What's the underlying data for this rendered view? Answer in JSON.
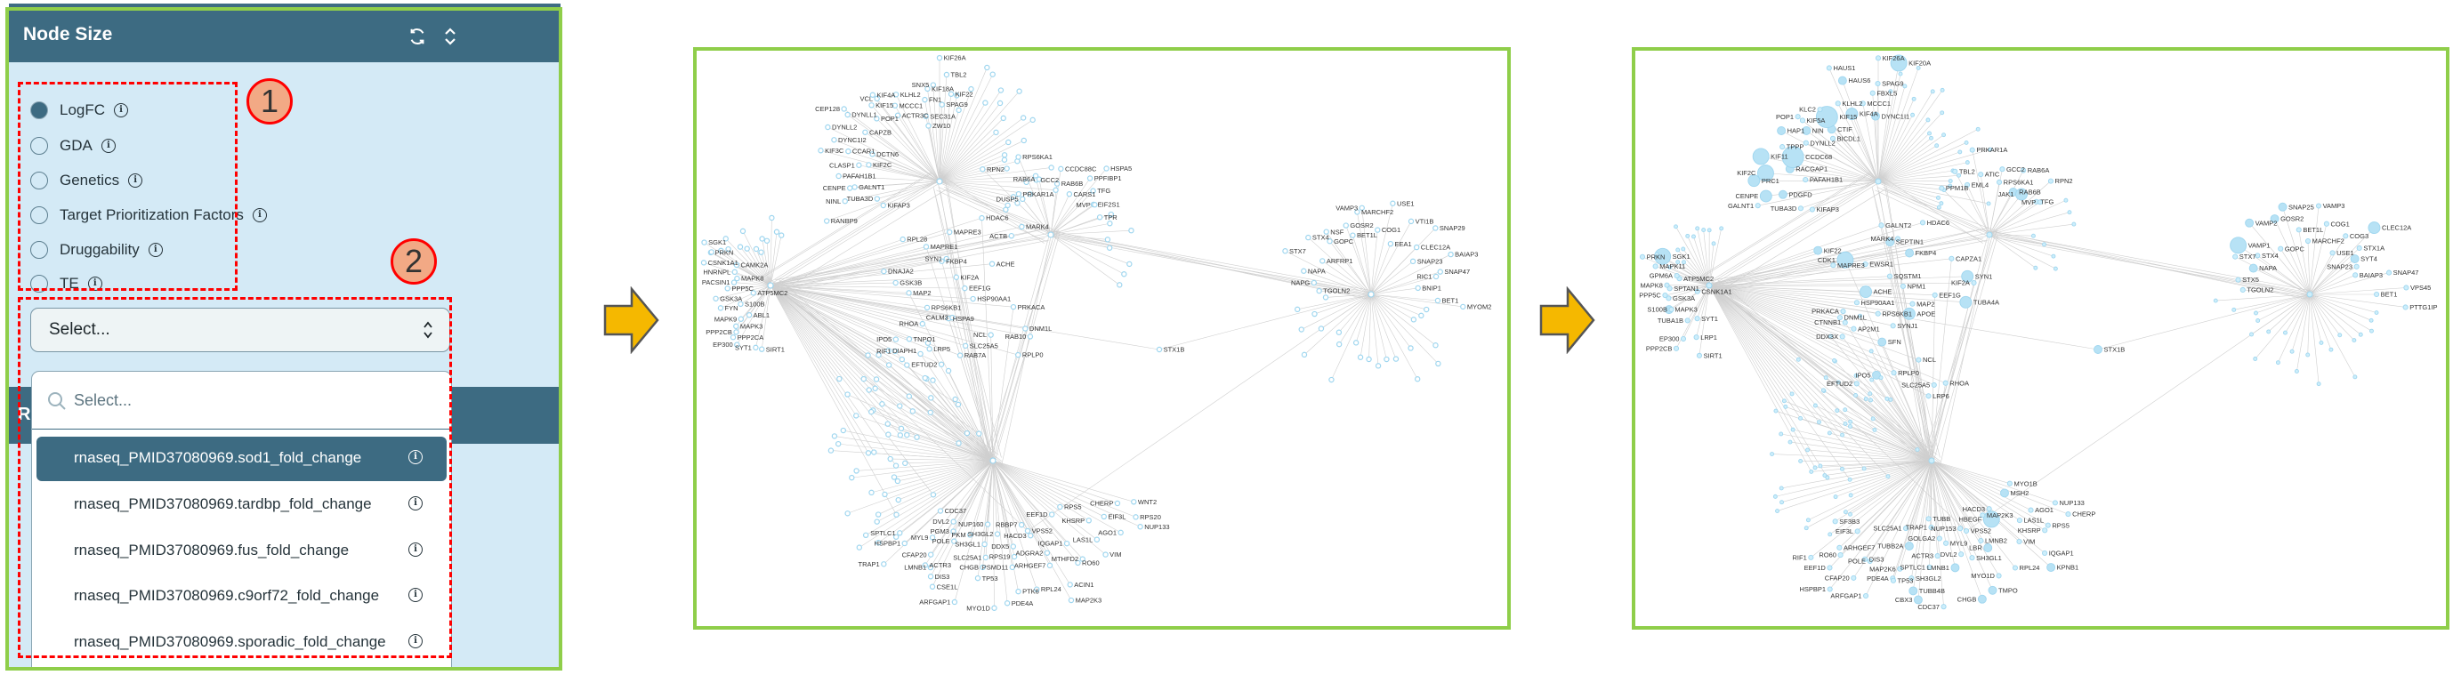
{
  "panel": {
    "title": "Node Size",
    "header_icons": [
      "refresh-icon",
      "chevron-up-down-icon"
    ],
    "radio_options": [
      {
        "label": "LogFC",
        "selected": true
      },
      {
        "label": "GDA",
        "selected": false
      },
      {
        "label": "Genetics",
        "selected": false
      },
      {
        "label": "Target Prioritization Factors",
        "selected": false
      },
      {
        "label": "Druggability",
        "selected": false
      },
      {
        "label": "TE",
        "selected": false
      }
    ],
    "select": {
      "value": "Select..."
    },
    "hidden_header_letter": "R",
    "dropdown": {
      "search_placeholder": "Select...",
      "options": [
        {
          "label": "rnaseq_PMID37080969.sod1_fold_change",
          "selected": true
        },
        {
          "label": "rnaseq_PMID37080969.tardbp_fold_change",
          "selected": false
        },
        {
          "label": "rnaseq_PMID37080969.fus_fold_change",
          "selected": false
        },
        {
          "label": "rnaseq_PMID37080969.c9orf72_fold_change",
          "selected": false
        },
        {
          "label": "rnaseq_PMID37080969.sporadic_fold_change",
          "selected": false
        }
      ]
    }
  },
  "annotations": {
    "callout_1": "1",
    "callout_2": "2"
  },
  "colors": {
    "header": "#3d6b82",
    "panel_bg": "#d4eaf6",
    "frame": "#8fce4a",
    "annotation": "#ff0000",
    "arrow": "#f5b800",
    "node": "#a9dcf2",
    "edge": "#cccccc"
  },
  "graphs": [
    {
      "name": "network-before",
      "node_sizing": "uniform",
      "hubs": [
        {
          "id": "top",
          "labels": [
            "KIFAP3",
            "RANBP9",
            "TUBA3D",
            "NINL",
            "GALNT1",
            "CENPE",
            "PAFAH1B1",
            "KIF2C",
            "CLASP1",
            "CCAR1",
            "KIF3C",
            "DYNC1I2",
            "DCTN6",
            "DYNLL2",
            "DYNLL1",
            "CAPZB",
            "CEP128",
            "POP1",
            "KIF15",
            "ACTR3C",
            "KIF4A",
            "KLHL2",
            "VCL",
            "MCCC1",
            "SEC31A",
            "FN1",
            "KIF18A",
            "ZW10",
            "SPAG9",
            "SNX5",
            "KIF26A",
            "TBL2",
            "KIF22"
          ]
        },
        {
          "id": "mid",
          "labels": [
            "RPN2",
            "PRKAR1A",
            "DUSP5",
            "RPS6KA1",
            "GCC2",
            "RAB6B",
            "RAB6A",
            "CCDC88C",
            "CARS1",
            "PPFIBP1",
            "TFG",
            "HSPA5",
            "EIF2S1",
            "MVP",
            "TPR"
          ]
        },
        {
          "id": "left",
          "labels": [
            "SIRT1",
            "SYT1",
            "EP300",
            "PPP2CA",
            "PPP2CB",
            "ABL1",
            "MAPK9",
            "MAPK3",
            "FYN",
            "S100B",
            "GSK3A",
            "PPP5C",
            "PACSIN1",
            "MAPK8",
            "ATP5MC2",
            "HNRNPL",
            "CSNK1A1",
            "CAMK2A",
            "PRKN",
            "SGK1"
          ]
        },
        {
          "id": "center",
          "labels": [
            "RPL28",
            "HDAC6",
            "MAPRE1",
            "MAPRE3",
            "MARK4",
            "ACTB",
            "FKBP4",
            "SYN1",
            "DNAJA2",
            "ACHE",
            "GSK3B",
            "KIF2A",
            "EEF1G",
            "MAP2",
            "HSP90AA1",
            "RPS6KB1",
            "PRKACA",
            "HSPA9",
            "CALM3",
            "DNM1L",
            "RAB10",
            "NCL",
            "RHOA",
            "RPLP0",
            "SLC25A5",
            "TNPO1",
            "RAB7A",
            "LRP5",
            "IPO5",
            "EFTUD2",
            "DIAPH1",
            "RIF1"
          ]
        },
        {
          "id": "bottom",
          "labels": [
            "WNT2",
            "CHERP",
            "RPS20",
            "NUP133",
            "EIF3L",
            "AGO1",
            "KHSRP",
            "RPS5",
            "LAS1L",
            "VIM",
            "EEF1D",
            "IQGAP1",
            "MTHFD2",
            "RO60",
            "ADGRA2",
            "ARHGEF7",
            "ACIN1",
            "MAP2K3",
            "HACD3",
            "RBBP7",
            "DDX5",
            "RPL24",
            "RPS19",
            "PSMD11",
            "PTK6",
            "SH3GL2",
            "PDE4A",
            "SLC25A1",
            "MYO1D",
            "CHGB",
            "NUP160",
            "TP53",
            "SH3GL1",
            "PKM",
            "ARFGAP1",
            "POLE",
            "PGM3",
            "DVL2",
            "CSE1L",
            "DIS3",
            "MYL9",
            "CFAP20",
            "LMNB1",
            "ACTR3",
            "CDC37",
            "HSPBP1",
            "TRAP1",
            "SPTLC1"
          ]
        },
        {
          "id": "right",
          "labels": [
            "TGOLN2",
            "NAPG",
            "NAPA",
            "STX7",
            "ARFRP1",
            "STX4",
            "NSF",
            "GOPC",
            "GOSR2",
            "BET1L",
            "MARCHF2",
            "VAMP3",
            "COG1",
            "USE1",
            "EEA1",
            "VTI1B",
            "SNAP29",
            "CLEC12A",
            "SNAP23",
            "BAIAP3",
            "SNAP47",
            "RIC1",
            "BNIP1",
            "BET1",
            "MYOM2"
          ]
        }
      ],
      "bridges": [
        "STX1B",
        "VPS52"
      ]
    },
    {
      "name": "network-after",
      "node_sizing": "LogFC",
      "hubs": [
        {
          "id": "top",
          "labels": [
            "KIFAP3",
            "TUBA3D",
            "PDGFD",
            "GALNT1",
            "CENPE",
            "PAFAH1B1",
            "PRC1",
            "KIF2C",
            "RACGAP1",
            "KIF11",
            "CCDC68",
            "TPPP",
            "DYNLL2",
            "HAP1",
            "KIF5A",
            "POP1",
            "NIN",
            "CTIF",
            "KIF15",
            "KLC2",
            "BICDL1",
            "KIF4A",
            "KLHL2",
            "HAUS1",
            "HAUS6",
            "MCCC1",
            "FBXL5",
            "DYNC1I1",
            "SPAG9",
            "KIF26A",
            "KIF20A"
          ]
        },
        {
          "id": "mid",
          "labels": [
            "PPM1B",
            "EML4",
            "TBL2",
            "ATIC",
            "PRKAR1A",
            "RPS6KA1",
            "GCC2",
            "RAB6B",
            "RAB6A",
            "JAK1",
            "RPN2",
            "TFG",
            "MVP"
          ]
        },
        {
          "id": "left",
          "labels": [
            "SIRT1",
            "LRP1",
            "SYT1",
            "EP300",
            "TUBA1B",
            "PPP2CB",
            "MAPK3",
            "S100B",
            "GSK3A",
            "PPP5C",
            "SPTAN1",
            "MAPK8",
            "ATP5MC2",
            "GPM6A",
            "CSNK1A1",
            "MAPK11",
            "PRKN",
            "SGK1"
          ]
        },
        {
          "id": "center",
          "labels": [
            "GALNT2",
            "KIF22",
            "HDAC6",
            "MAPRE3",
            "SEPTIN1",
            "MARK4",
            "CDK1",
            "FKBP4",
            "EWSR1",
            "CAPZA1",
            "SQSTM1",
            "NPM1",
            "SYN1",
            "KIF2A",
            "EEF1G",
            "ACHE",
            "TUBA4A",
            "MAP2",
            "HSP90AA1",
            "APOE",
            "RPS6KB1",
            "PRKACA",
            "SYNJ1",
            "DNM1L",
            "CTNNB1",
            "AP2M1",
            "SFN",
            "NCL",
            "DDX3X",
            "RHOA",
            "SLC25A5",
            "RPLP0",
            "LRP6",
            "IPO5",
            "EFTUD2"
          ]
        },
        {
          "id": "bottom",
          "labels": [
            "MYO1B",
            "NUP133",
            "CHERP",
            "MSH2",
            "AGO1",
            "RPS5",
            "KHSRP",
            "LAS1L",
            "VIM",
            "IQGAP1",
            "KPNB1",
            "HBEGF",
            "MAP2K3",
            "HACD3",
            "RPL24",
            "LMNB2",
            "LBR",
            "MYO1D",
            "NUP153",
            "TMPO",
            "SH3GL1",
            "CHGB",
            "DVL2",
            "GOLGA2",
            "LMNB1",
            "MYL9",
            "ACTR3",
            "CDC37",
            "SPTLC1",
            "TRAP1",
            "TUBB",
            "CBX3",
            "TUBB4B",
            "TUBB2A",
            "MAP2K6",
            "SH3GL2",
            "PDE4A",
            "SLC25A1",
            "TP53",
            "ARFGAP1",
            "POLE",
            "DIS3",
            "CFAP20",
            "HSPBP1",
            "EEF1D",
            "RO60",
            "ARHGEF7",
            "EIF3L",
            "RIF1",
            "SF3B3"
          ]
        },
        {
          "id": "right",
          "labels": [
            "TGOLN2",
            "STX5",
            "NAPA",
            "STX7",
            "VAMP1",
            "STX4",
            "VAMP2",
            "GOPC",
            "GOSR2",
            "SNAP25",
            "BET1L",
            "MARCHF2",
            "VAMP3",
            "COG1",
            "COG3",
            "USE1",
            "STX1A",
            "CLEC12A",
            "SYT4",
            "SNAP23",
            "BAIAP3",
            "SNAP47",
            "VPS45",
            "BET1",
            "PTTG1IP"
          ]
        }
      ],
      "bridges": [
        "STX1B",
        "VPS52"
      ],
      "logfc_size_levels": {
        "CENPE": 3,
        "PRC1": 3,
        "KIF2C": 4,
        "KIF11": 4,
        "CCDC68": 5,
        "KIF15": 5,
        "PDGFD": 2,
        "RACGAP1": 2,
        "HAP1": 2,
        "NIN": 2,
        "CTIF": 2,
        "KIF4A": 3,
        "HAUS6": 2,
        "KIF20A": 4,
        "CDK1": 4,
        "DYNC1I1": 2,
        "JAK1": 3,
        "SYN1": 3,
        "ACHE": 3,
        "TUBA4A": 3,
        "APOE": 3,
        "SGK1": 4,
        "HBEGF": 4,
        "MAPK3": 2,
        "VAMP1": 4,
        "GOSR2": 2,
        "SNAP25": 2,
        "VAMP2": 2,
        "NAPA": 2,
        "SYT4": 2,
        "CLEC12A": 3,
        "SFN": 2,
        "IPO5": 2,
        "MSH2": 2,
        "KPNB1": 2,
        "LBR": 2,
        "TMPO": 2,
        "CHGB": 2,
        "LMNB1": 2,
        "TUBB4B": 2,
        "CBX3": 2,
        "TUBB2A": 2,
        "STX1B": 2,
        "RAB6B": 2,
        "SEPTIN1": 2,
        "GALNT2": 1,
        "KIF22": 2,
        "FKBP4": 2,
        "TUBA1B": 1
      }
    }
  ]
}
